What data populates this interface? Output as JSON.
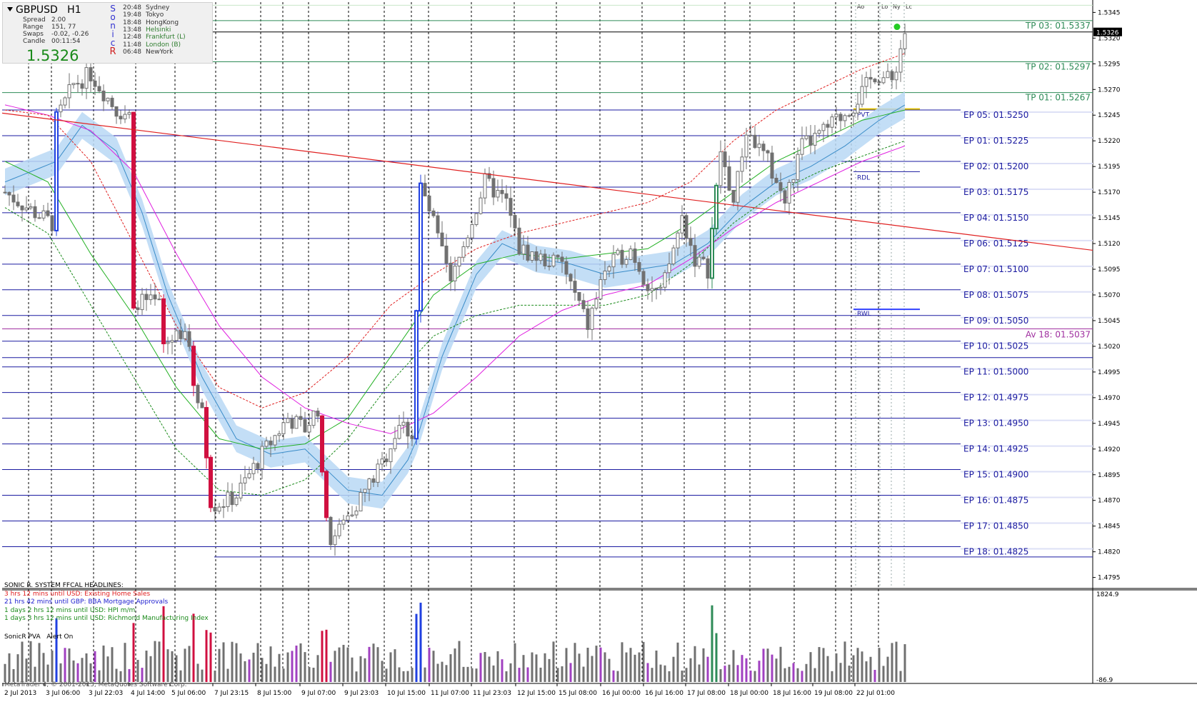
{
  "symbol": "GBPUSD",
  "timeframe": "H1",
  "stats": {
    "spread_label": "Spread",
    "spread": "2.00",
    "range_label": "Range",
    "range": "151, 77",
    "swaps_label": "Swaps",
    "swaps": "-0.02, -0.26",
    "candle_label": "Candle",
    "candle": "00:11:54",
    "price": "1.5326"
  },
  "sonic_letters": [
    "S",
    "o",
    "n",
    "i",
    "c",
    "R"
  ],
  "sessions": [
    {
      "time": "20:48",
      "city": "Sydney",
      "color": "#333333"
    },
    {
      "time": "19:48",
      "city": "Tokyo",
      "color": "#333333"
    },
    {
      "time": "18:48",
      "city": "HongKong",
      "color": "#333333"
    },
    {
      "time": "13:48",
      "city": "Helsinki",
      "color": "#2e7d2e"
    },
    {
      "time": "12:48",
      "city": "Frankfurt  (L)",
      "color": "#2e7d2e"
    },
    {
      "time": "11:48",
      "city": "London  (B)",
      "color": "#2e7d2e"
    },
    {
      "time": "06:48",
      "city": "NewYork",
      "color": "#333333"
    }
  ],
  "session_markers": [
    "Ao",
    "Lo",
    "Ny",
    "Lc"
  ],
  "headlines": {
    "title": "SONIC R. SYSTEM  FFCAL HEADLINES:",
    "items": [
      {
        "text": "3 hrs 12 mins until USD: Existing Home Sales",
        "color": "#e02020"
      },
      {
        "text": "21 hrs 42 mins until GBP: BBA Mortgage Approvals",
        "color": "#2020d0"
      },
      {
        "text": "1 days 2 hrs 12 mins until USD: HPI m/m",
        "color": "#1a8a1a"
      },
      {
        "text": "1 days 3 hrs 12 mins until USD: Richmond Manufacturing Index",
        "color": "#1a8a1a"
      }
    ]
  },
  "indicator": {
    "name": "SonicR PVA",
    "alert": "Alert On",
    "max": "1824.9",
    "min": "-86.9"
  },
  "copyright": "MetaTrader 4, © 2001-2013, MetaQuotes Software Corp.",
  "current_price_label": "1.5326",
  "tp_levels": [
    {
      "label": "TP 03:  01.5337",
      "price": 1.5337
    },
    {
      "label": "TP 02:  01.5297",
      "price": 1.5297
    },
    {
      "label": "TP 01:  01.5267",
      "price": 1.5267
    }
  ],
  "ep_levels": [
    {
      "label": "EP 05:  01.5250",
      "price": 1.525
    },
    {
      "label": "EP 01:  01.5225",
      "price": 1.5225
    },
    {
      "label": "EP 02:  01.5200",
      "price": 1.52
    },
    {
      "label": "EP 03:  01.5175",
      "price": 1.5175
    },
    {
      "label": "EP 04:  01.5150",
      "price": 1.515
    },
    {
      "label": "EP 06:  01.5125",
      "price": 1.5125
    },
    {
      "label": "EP 07:  01.5100",
      "price": 1.51
    },
    {
      "label": "EP 08:  01.5075",
      "price": 1.5075
    },
    {
      "label": "EP 09:  01.5050",
      "price": 1.505
    },
    {
      "label": "EP 10:  01.5025",
      "price": 1.5025
    },
    {
      "label": "EP 11:  01.5000",
      "price": 1.5
    },
    {
      "label": "EP 12:  01.4975",
      "price": 1.4975
    },
    {
      "label": "EP 13:  01.4950",
      "price": 1.495
    },
    {
      "label": "EP 14:  01.4925",
      "price": 1.4925
    },
    {
      "label": "EP 15:  01.4900",
      "price": 1.49
    },
    {
      "label": "EP 16:  01.4875",
      "price": 1.4875
    },
    {
      "label": "EP 17:  01.4850",
      "price": 1.485
    },
    {
      "label": "EP 18:  01.4825",
      "price": 1.4825
    }
  ],
  "av_level": {
    "label": "Av 18:  01.5037",
    "price": 1.5037
  },
  "pivot_labels": {
    "pvt": "PVT",
    "rdl": "RDL",
    "rwl": "RWL"
  },
  "colors": {
    "ep": "#1a1aa0",
    "tp": "#2e8b57",
    "av": "#a030a0",
    "trend": "#e02020",
    "bull": "#2e8b57",
    "bear": "#d01040",
    "blue_candle": "#2040e0",
    "ema_band": "#b8d8f4"
  },
  "chart_data": {
    "type": "candlestick",
    "ylim": [
      1.4785,
      1.5355
    ],
    "y_ticks": [
      "1.5345",
      "1.5320",
      "1.5295",
      "1.5270",
      "1.5245",
      "1.5220",
      "1.5195",
      "1.5170",
      "1.5145",
      "1.5120",
      "1.5095",
      "1.5070",
      "1.5045",
      "1.5020",
      "1.4995",
      "1.4970",
      "1.4945",
      "1.4920",
      "1.4895",
      "1.4870",
      "1.4845",
      "1.4820",
      "1.4795"
    ],
    "x_ticks": [
      "2 Jul 2013",
      "3 Jul 06:00",
      "3 Jul 22:03",
      "4 Jul 14:00",
      "5 Jul 06:00",
      "7 Jul 23:15",
      "8 Jul 15:00",
      "9 Jul 07:00",
      "9 Jul 23:03",
      "10 Jul 15:00",
      "11 Jul 07:00",
      "11 Jul 23:03",
      "12 Jul 15:00",
      "15 Jul 08:00",
      "16 Jul 00:00",
      "16 Jul 16:00",
      "17 Jul 08:00",
      "18 Jul 00:00",
      "18 Jul 16:00",
      "19 Jul 08:00",
      "22 Jul 01:00"
    ],
    "close_path": [
      [
        0,
        1.517
      ],
      [
        7,
        1.515
      ],
      [
        11,
        1.514
      ],
      [
        12,
        1.524
      ],
      [
        16,
        1.5275
      ],
      [
        20,
        1.5285
      ],
      [
        26,
        1.525
      ],
      [
        29,
        1.5245
      ],
      [
        30,
        1.5065
      ],
      [
        36,
        1.506
      ],
      [
        37,
        1.502
      ],
      [
        42,
        1.504
      ],
      [
        44,
        1.4985
      ],
      [
        46,
        1.496
      ],
      [
        48,
        1.4865
      ],
      [
        52,
        1.487
      ],
      [
        54,
        1.4875
      ],
      [
        60,
        1.4915
      ],
      [
        66,
        1.495
      ],
      [
        70,
        1.494
      ],
      [
        73,
        1.496
      ],
      [
        74,
        1.489
      ],
      [
        76,
        1.483
      ],
      [
        80,
        1.4855
      ],
      [
        84,
        1.488
      ],
      [
        88,
        1.4905
      ],
      [
        92,
        1.4945
      ],
      [
        95,
        1.4935
      ],
      [
        97,
        1.5175
      ],
      [
        100,
        1.514
      ],
      [
        104,
        1.508
      ],
      [
        108,
        1.513
      ],
      [
        112,
        1.518
      ],
      [
        117,
        1.516
      ],
      [
        120,
        1.5115
      ],
      [
        125,
        1.5105
      ],
      [
        130,
        1.51
      ],
      [
        133,
        1.507
      ],
      [
        136,
        1.504
      ],
      [
        140,
        1.5095
      ],
      [
        146,
        1.5115
      ],
      [
        150,
        1.508
      ],
      [
        153,
        1.507
      ],
      [
        158,
        1.5145
      ],
      [
        161,
        1.5105
      ],
      [
        164,
        1.5095
      ],
      [
        167,
        1.521
      ],
      [
        170,
        1.516
      ],
      [
        173,
        1.523
      ],
      [
        178,
        1.52
      ],
      [
        182,
        1.516
      ],
      [
        186,
        1.5215
      ],
      [
        190,
        1.5225
      ],
      [
        194,
        1.524
      ],
      [
        198,
        1.5255
      ],
      [
        203,
        1.5285
      ],
      [
        207,
        1.5278
      ],
      [
        210,
        1.5326
      ]
    ],
    "ma_band": [
      [
        0,
        1.518
      ],
      [
        12,
        1.52
      ],
      [
        18,
        1.5235
      ],
      [
        26,
        1.521
      ],
      [
        32,
        1.515
      ],
      [
        38,
        1.507
      ],
      [
        46,
        1.499
      ],
      [
        54,
        1.493
      ],
      [
        62,
        1.4915
      ],
      [
        70,
        1.492
      ],
      [
        80,
        1.488
      ],
      [
        88,
        1.4875
      ],
      [
        95,
        1.4915
      ],
      [
        102,
        1.501
      ],
      [
        110,
        1.509
      ],
      [
        116,
        1.512
      ],
      [
        124,
        1.5105
      ],
      [
        132,
        1.51
      ],
      [
        140,
        1.509
      ],
      [
        148,
        1.5095
      ],
      [
        156,
        1.51
      ],
      [
        164,
        1.512
      ],
      [
        172,
        1.5155
      ],
      [
        180,
        1.518
      ],
      [
        188,
        1.5195
      ],
      [
        196,
        1.5215
      ],
      [
        204,
        1.524
      ],
      [
        210,
        1.5255
      ]
    ],
    "ma_green": [
      [
        0,
        1.52
      ],
      [
        10,
        1.518
      ],
      [
        20,
        1.511
      ],
      [
        30,
        1.505
      ],
      [
        40,
        1.498
      ],
      [
        50,
        1.493
      ],
      [
        60,
        1.492
      ],
      [
        70,
        1.4925
      ],
      [
        80,
        1.495
      ],
      [
        90,
        1.501
      ],
      [
        100,
        1.507
      ],
      [
        110,
        1.51
      ],
      [
        120,
        1.511
      ],
      [
        130,
        1.5105
      ],
      [
        140,
        1.511
      ],
      [
        150,
        1.5115
      ],
      [
        160,
        1.514
      ],
      [
        170,
        1.517
      ],
      [
        180,
        1.52
      ],
      [
        190,
        1.522
      ],
      [
        200,
        1.524
      ],
      [
        210,
        1.525
      ]
    ],
    "ma_green_dash": [
      [
        0,
        1.5155
      ],
      [
        10,
        1.513
      ],
      [
        20,
        1.506
      ],
      [
        30,
        1.499
      ],
      [
        40,
        1.492
      ],
      [
        50,
        1.488
      ],
      [
        60,
        1.4875
      ],
      [
        70,
        1.489
      ],
      [
        80,
        1.493
      ],
      [
        90,
        1.4985
      ],
      [
        100,
        1.503
      ],
      [
        110,
        1.505
      ],
      [
        120,
        1.506
      ],
      [
        130,
        1.506
      ],
      [
        140,
        1.506
      ],
      [
        150,
        1.507
      ],
      [
        160,
        1.51
      ],
      [
        170,
        1.514
      ],
      [
        180,
        1.517
      ],
      [
        190,
        1.519
      ],
      [
        200,
        1.5205
      ],
      [
        210,
        1.522
      ]
    ],
    "ma_magenta": [
      [
        0,
        1.5255
      ],
      [
        10,
        1.5245
      ],
      [
        20,
        1.523
      ],
      [
        30,
        1.519
      ],
      [
        40,
        1.511
      ],
      [
        50,
        1.504
      ],
      [
        60,
        1.499
      ],
      [
        70,
        1.496
      ],
      [
        80,
        1.4945
      ],
      [
        90,
        1.4935
      ],
      [
        100,
        1.4955
      ],
      [
        110,
        1.499
      ],
      [
        120,
        1.503
      ],
      [
        130,
        1.5055
      ],
      [
        140,
        1.507
      ],
      [
        150,
        1.508
      ],
      [
        160,
        1.5105
      ],
      [
        170,
        1.5135
      ],
      [
        180,
        1.516
      ],
      [
        190,
        1.518
      ],
      [
        200,
        1.52
      ],
      [
        210,
        1.5215
      ]
    ],
    "ma_red_dash": [
      [
        0,
        1.525
      ],
      [
        10,
        1.5245
      ],
      [
        20,
        1.52
      ],
      [
        30,
        1.512
      ],
      [
        40,
        1.504
      ],
      [
        50,
        1.498
      ],
      [
        60,
        1.496
      ],
      [
        70,
        1.4975
      ],
      [
        80,
        1.501
      ],
      [
        90,
        1.506
      ],
      [
        100,
        1.509
      ],
      [
        110,
        1.5115
      ],
      [
        120,
        1.513
      ],
      [
        130,
        1.514
      ],
      [
        140,
        1.515
      ],
      [
        150,
        1.516
      ],
      [
        160,
        1.518
      ],
      [
        170,
        1.522
      ],
      [
        180,
        1.525
      ],
      [
        190,
        1.527
      ],
      [
        200,
        1.529
      ],
      [
        210,
        1.5305
      ]
    ],
    "trendline": [
      [
        0,
        1.5247
      ],
      [
        270,
        1.5105
      ]
    ],
    "candle_count": 211
  }
}
